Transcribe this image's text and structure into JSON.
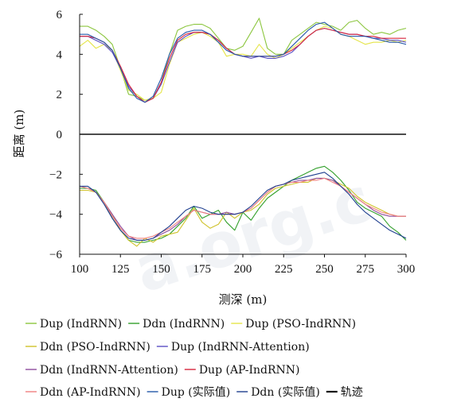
{
  "chart_data": {
    "type": "line",
    "xlabel": "测深 (m)",
    "ylabel": "距离 (m)",
    "xlim": [
      100,
      300
    ],
    "ylim": [
      -6,
      6
    ],
    "xticks": [
      100,
      125,
      150,
      175,
      200,
      225,
      250,
      275,
      300
    ],
    "yticks": [
      6,
      4,
      2,
      0,
      -2,
      -4,
      -6
    ],
    "xtick_labels": [
      "100",
      "125",
      "150",
      "175",
      "200",
      "225",
      "250",
      "275",
      "300"
    ],
    "ytick_labels": [
      "6",
      "4",
      "2",
      "0",
      "−2",
      "−4",
      "−6"
    ],
    "grid": false,
    "legend_position": "bottom",
    "watermark": "a.org.c",
    "series": [
      {
        "name": "Dup (IndRNN)",
        "color": "#8cc63f",
        "x": [
          100,
          105,
          110,
          115,
          120,
          125,
          130,
          135,
          140,
          145,
          150,
          155,
          160,
          165,
          170,
          175,
          180,
          185,
          190,
          195,
          200,
          205,
          210,
          215,
          220,
          225,
          230,
          235,
          240,
          245,
          250,
          255,
          260,
          265,
          270,
          275,
          280,
          285,
          290,
          295,
          300
        ],
        "y": [
          5.4,
          5.4,
          5.2,
          4.9,
          4.5,
          3.3,
          2.0,
          1.9,
          1.7,
          1.8,
          2.6,
          4.0,
          5.2,
          5.4,
          5.5,
          5.5,
          5.3,
          4.8,
          4.3,
          4.2,
          4.4,
          5.1,
          5.8,
          4.3,
          4.0,
          4.0,
          4.7,
          5.0,
          5.3,
          5.6,
          5.5,
          5.4,
          5.2,
          5.6,
          5.7,
          5.3,
          5.0,
          5.1,
          5.0,
          5.2,
          5.3
        ]
      },
      {
        "name": "Ddn (IndRNN)",
        "color": "#33a02c",
        "x": [
          100,
          105,
          110,
          115,
          120,
          125,
          130,
          135,
          140,
          145,
          150,
          155,
          160,
          165,
          170,
          175,
          180,
          185,
          190,
          195,
          200,
          205,
          210,
          215,
          220,
          225,
          230,
          235,
          240,
          245,
          250,
          255,
          260,
          265,
          270,
          275,
          280,
          285,
          290,
          295,
          300
        ],
        "y": [
          -2.7,
          -2.7,
          -2.8,
          -3.4,
          -4.2,
          -4.8,
          -5.3,
          -5.4,
          -5.4,
          -5.3,
          -5.2,
          -5.0,
          -4.6,
          -4.2,
          -3.6,
          -4.2,
          -4.0,
          -3.8,
          -4.4,
          -4.8,
          -3.9,
          -4.3,
          -3.7,
          -3.2,
          -2.9,
          -2.6,
          -2.3,
          -2.1,
          -1.9,
          -1.7,
          -1.6,
          -1.9,
          -2.3,
          -2.8,
          -3.4,
          -3.7,
          -3.9,
          -4.1,
          -4.6,
          -4.9,
          -5.3
        ]
      },
      {
        "name": "Dup (PSO-IndRNN)",
        "color": "#e5e54a",
        "x": [
          100,
          105,
          110,
          115,
          120,
          125,
          130,
          135,
          140,
          145,
          150,
          155,
          160,
          165,
          170,
          175,
          180,
          185,
          190,
          195,
          200,
          205,
          210,
          215,
          220,
          225,
          230,
          235,
          240,
          245,
          250,
          255,
          260,
          265,
          270,
          275,
          280,
          285,
          290,
          295,
          300
        ],
        "y": [
          4.4,
          4.7,
          4.3,
          4.5,
          4.2,
          3.2,
          2.2,
          2.0,
          1.7,
          1.8,
          2.1,
          3.5,
          4.6,
          4.8,
          5.0,
          5.1,
          4.9,
          4.6,
          3.9,
          4.0,
          4.0,
          3.9,
          4.5,
          4.0,
          3.8,
          4.0,
          4.3,
          4.6,
          4.9,
          5.2,
          5.4,
          5.3,
          5.0,
          4.9,
          4.7,
          4.5,
          4.6,
          4.6,
          4.7,
          4.6,
          4.7
        ]
      },
      {
        "name": "Ddn (PSO-IndRNN)",
        "color": "#cfc22b",
        "x": [
          100,
          105,
          110,
          115,
          120,
          125,
          130,
          135,
          140,
          145,
          150,
          155,
          160,
          165,
          170,
          175,
          180,
          185,
          190,
          195,
          200,
          205,
          210,
          215,
          220,
          225,
          230,
          235,
          240,
          245,
          250,
          255,
          260,
          265,
          270,
          275,
          280,
          285,
          290,
          295,
          300
        ],
        "y": [
          -2.8,
          -2.8,
          -2.9,
          -3.4,
          -4.0,
          -4.8,
          -5.3,
          -5.6,
          -5.2,
          -5.4,
          -5.1,
          -5.0,
          -4.9,
          -4.3,
          -3.7,
          -4.4,
          -4.7,
          -4.5,
          -3.9,
          -4.2,
          -3.9,
          -3.8,
          -3.5,
          -3.0,
          -2.7,
          -2.6,
          -2.5,
          -2.4,
          -2.4,
          -2.2,
          -2.2,
          -2.3,
          -2.5,
          -2.7,
          -3.1,
          -3.4,
          -3.6,
          -3.8,
          -4.0,
          -4.1,
          -4.1
        ]
      },
      {
        "name": "Dup (IndRNN-Attention)",
        "color": "#5b4fc4",
        "x": [
          100,
          105,
          110,
          115,
          120,
          125,
          130,
          135,
          140,
          145,
          150,
          155,
          160,
          165,
          170,
          175,
          180,
          185,
          190,
          195,
          200,
          205,
          210,
          215,
          220,
          225,
          230,
          235,
          240,
          245,
          250,
          255,
          260,
          265,
          270,
          275,
          280,
          285,
          290,
          295,
          300
        ],
        "y": [
          4.9,
          4.9,
          4.7,
          4.5,
          4.1,
          3.3,
          2.4,
          1.9,
          1.6,
          1.8,
          2.5,
          3.6,
          4.6,
          4.9,
          5.1,
          5.1,
          5.0,
          4.7,
          4.3,
          4.0,
          3.9,
          3.8,
          3.9,
          3.8,
          3.8,
          3.9,
          4.1,
          4.5,
          4.9,
          5.2,
          5.3,
          5.2,
          5.1,
          5.0,
          5.0,
          4.9,
          4.8,
          4.8,
          4.7,
          4.7,
          4.6
        ]
      },
      {
        "name": "Ddn (IndRNN-Attention)",
        "color": "#8e4c9e",
        "x": [
          100,
          105,
          110,
          115,
          120,
          125,
          130,
          135,
          140,
          145,
          150,
          155,
          160,
          165,
          170,
          175,
          180,
          185,
          190,
          195,
          200,
          205,
          210,
          215,
          220,
          225,
          230,
          235,
          240,
          245,
          250,
          255,
          260,
          265,
          270,
          275,
          280,
          285,
          290,
          295,
          300
        ],
        "y": [
          -2.6,
          -2.7,
          -2.9,
          -3.4,
          -4.0,
          -4.6,
          -5.1,
          -5.3,
          -5.3,
          -5.2,
          -5.0,
          -4.8,
          -4.5,
          -4.1,
          -3.8,
          -3.9,
          -4.0,
          -4.0,
          -3.9,
          -4.0,
          -3.9,
          -3.7,
          -3.3,
          -2.9,
          -2.6,
          -2.5,
          -2.4,
          -2.3,
          -2.3,
          -2.2,
          -2.2,
          -2.3,
          -2.6,
          -2.9,
          -3.2,
          -3.5,
          -3.8,
          -4.0,
          -4.1,
          -4.1,
          -4.1
        ]
      },
      {
        "name": "Dup (AP-IndRNN)",
        "color": "#d7263d",
        "x": [
          100,
          105,
          110,
          115,
          120,
          125,
          130,
          135,
          140,
          145,
          150,
          155,
          160,
          165,
          170,
          175,
          180,
          185,
          190,
          195,
          200,
          205,
          210,
          215,
          220,
          225,
          230,
          235,
          240,
          245,
          250,
          255,
          260,
          265,
          270,
          275,
          280,
          285,
          290,
          295,
          300
        ],
        "y": [
          4.9,
          4.9,
          4.8,
          4.6,
          4.2,
          3.4,
          2.5,
          1.9,
          1.6,
          1.8,
          2.6,
          3.8,
          4.7,
          5.0,
          5.1,
          5.1,
          5.0,
          4.7,
          4.3,
          4.0,
          3.9,
          3.9,
          3.9,
          3.9,
          3.9,
          4.0,
          4.2,
          4.5,
          4.9,
          5.2,
          5.3,
          5.2,
          5.1,
          5.0,
          5.0,
          4.9,
          4.9,
          4.8,
          4.8,
          4.8,
          4.8
        ]
      },
      {
        "name": "Ddn (AP-IndRNN)",
        "color": "#f08080",
        "x": [
          100,
          105,
          110,
          115,
          120,
          125,
          130,
          135,
          140,
          145,
          150,
          155,
          160,
          165,
          170,
          175,
          180,
          185,
          190,
          195,
          200,
          205,
          210,
          215,
          220,
          225,
          230,
          235,
          240,
          245,
          250,
          255,
          260,
          265,
          270,
          275,
          280,
          285,
          290,
          295,
          300
        ],
        "y": [
          -2.6,
          -2.7,
          -2.9,
          -3.4,
          -4.1,
          -4.7,
          -5.1,
          -5.2,
          -5.2,
          -5.1,
          -4.9,
          -4.7,
          -4.4,
          -4.1,
          -3.8,
          -3.9,
          -4.0,
          -4.0,
          -4.0,
          -4.0,
          -3.9,
          -3.7,
          -3.3,
          -2.9,
          -2.6,
          -2.5,
          -2.4,
          -2.4,
          -2.3,
          -2.3,
          -2.2,
          -2.4,
          -2.6,
          -2.9,
          -3.2,
          -3.5,
          -3.7,
          -3.9,
          -4.0,
          -4.1,
          -4.1
        ]
      },
      {
        "name": "Dup (实际值)",
        "color": "#2457a8",
        "x": [
          100,
          105,
          110,
          115,
          120,
          125,
          130,
          135,
          140,
          145,
          150,
          155,
          160,
          165,
          170,
          175,
          180,
          185,
          190,
          195,
          200,
          205,
          210,
          215,
          220,
          225,
          230,
          235,
          240,
          245,
          250,
          255,
          260,
          265,
          270,
          275,
          280,
          285,
          290,
          295,
          300
        ],
        "y": [
          5.0,
          5.0,
          4.8,
          4.6,
          4.2,
          3.3,
          2.3,
          1.8,
          1.6,
          1.9,
          2.8,
          4.0,
          4.8,
          5.1,
          5.2,
          5.2,
          5.0,
          4.6,
          4.2,
          4.0,
          3.9,
          3.9,
          3.9,
          3.9,
          3.9,
          4.0,
          4.4,
          4.8,
          5.2,
          5.5,
          5.6,
          5.3,
          5.0,
          4.9,
          4.9,
          4.9,
          4.8,
          4.7,
          4.6,
          4.6,
          4.5
        ]
      },
      {
        "name": "Ddn (实际值)",
        "color": "#1f3f8f",
        "x": [
          100,
          105,
          110,
          115,
          120,
          125,
          130,
          135,
          140,
          145,
          150,
          155,
          160,
          165,
          170,
          175,
          180,
          185,
          190,
          195,
          200,
          205,
          210,
          215,
          220,
          225,
          230,
          235,
          240,
          245,
          250,
          255,
          260,
          265,
          270,
          275,
          280,
          285,
          290,
          295,
          300
        ],
        "y": [
          -2.6,
          -2.6,
          -2.9,
          -3.5,
          -4.2,
          -4.8,
          -5.2,
          -5.3,
          -5.3,
          -5.2,
          -4.9,
          -4.6,
          -4.2,
          -3.8,
          -3.6,
          -3.7,
          -3.9,
          -4.0,
          -4.0,
          -4.0,
          -3.9,
          -3.6,
          -3.2,
          -2.8,
          -2.6,
          -2.5,
          -2.3,
          -2.2,
          -2.1,
          -2.0,
          -1.9,
          -2.2,
          -2.6,
          -3.0,
          -3.5,
          -3.9,
          -4.2,
          -4.5,
          -4.8,
          -5.0,
          -5.2
        ]
      },
      {
        "name": "轨迹",
        "color": "#111111",
        "x": [
          100,
          300
        ],
        "y": [
          0,
          0
        ]
      }
    ]
  }
}
